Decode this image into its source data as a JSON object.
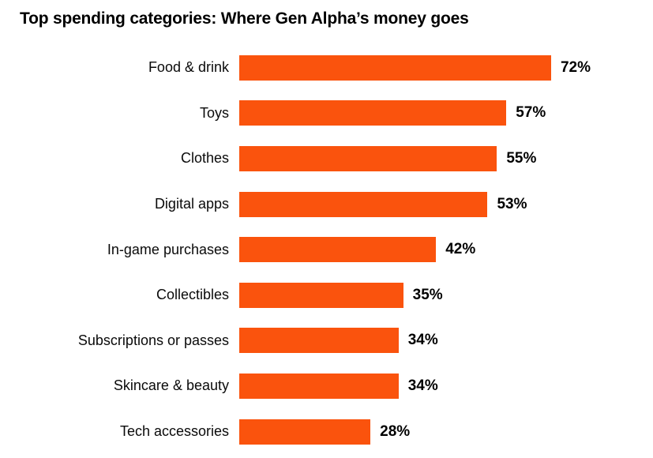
{
  "title": "Top spending categories: Where Gen Alpha’s money goes",
  "colors": {
    "bar": "#fa530d",
    "title_text": "#000000",
    "label_text": "#0a0a0a",
    "background": "#ffffff"
  },
  "chart_data": {
    "type": "bar",
    "orientation": "horizontal",
    "title": "Top spending categories: Where Gen Alpha’s money goes",
    "categories": [
      "Food & drink",
      "Toys",
      "Clothes",
      "Digital apps",
      "In-game purchases",
      "Collectibles",
      "Subscriptions or passes",
      "Skincare & beauty",
      "Tech accessories"
    ],
    "values": [
      72,
      57,
      55,
      53,
      42,
      35,
      34,
      34,
      28
    ],
    "value_suffix": "%",
    "xlabel": "",
    "ylabel": "",
    "xlim": [
      0,
      75
    ],
    "grid": false,
    "legend": false,
    "value_labels": "outside-end"
  }
}
